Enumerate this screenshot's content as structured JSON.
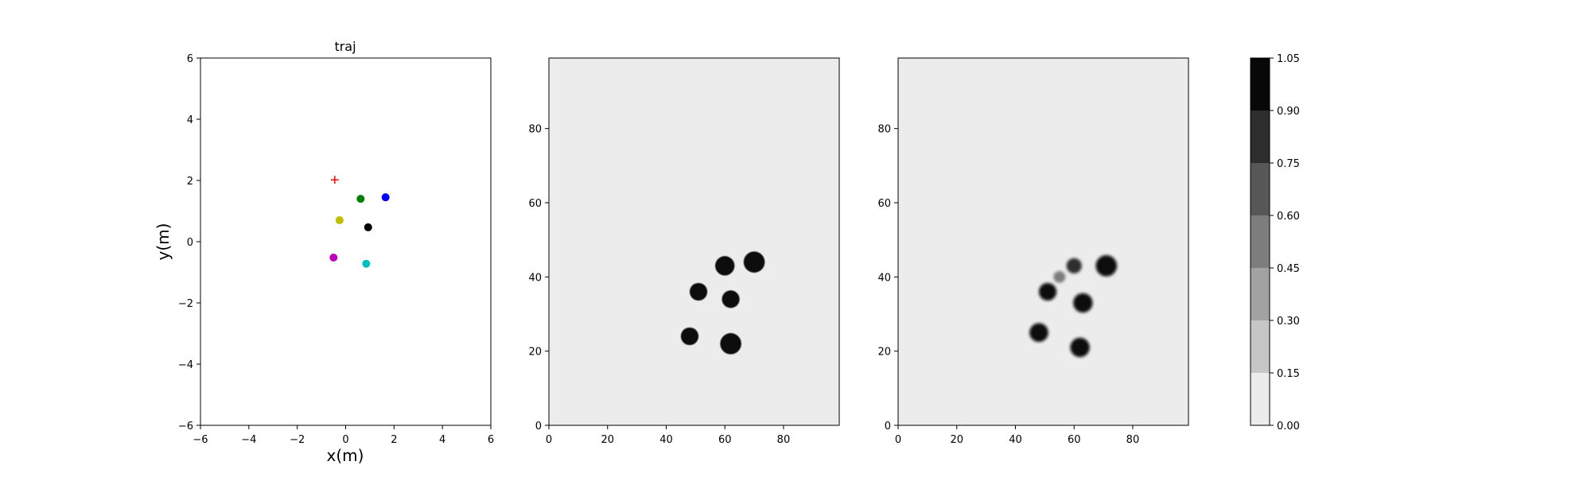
{
  "chart_data": [
    {
      "type": "scatter",
      "title": "traj",
      "xlabel": "x(m)",
      "ylabel": "y(m)",
      "xlim": [
        -6,
        6
      ],
      "ylim": [
        -6,
        6
      ],
      "xticks": [
        -6,
        -4,
        -2,
        0,
        2,
        4,
        6
      ],
      "yticks": [
        -6,
        -4,
        -2,
        0,
        2,
        4,
        6
      ],
      "xtick_labels": [
        "−6",
        "−4",
        "−2",
        "0",
        "2",
        "4",
        "6"
      ],
      "ytick_labels": [
        "−6",
        "−4",
        "−2",
        "0",
        "2",
        "4",
        "6"
      ],
      "grid": false,
      "points": [
        {
          "x": -0.45,
          "y": 2.02,
          "color": "#ff0000",
          "marker": "plus"
        },
        {
          "x": 0.62,
          "y": 1.4,
          "color": "#008000",
          "marker": "circle"
        },
        {
          "x": 1.65,
          "y": 1.45,
          "color": "#0000ff",
          "marker": "circle"
        },
        {
          "x": -0.25,
          "y": 0.7,
          "color": "#bfbf00",
          "marker": "circle"
        },
        {
          "x": 0.93,
          "y": 0.47,
          "color": "#000000",
          "marker": "circle"
        },
        {
          "x": -0.5,
          "y": -0.52,
          "color": "#bf00bf",
          "marker": "circle"
        },
        {
          "x": 0.85,
          "y": -0.72,
          "color": "#00bfbf",
          "marker": "circle"
        }
      ]
    },
    {
      "type": "heatmap",
      "xlim": [
        0,
        99
      ],
      "ylim": [
        0,
        99
      ],
      "xticks": [
        0,
        20,
        40,
        60,
        80
      ],
      "yticks": [
        0,
        20,
        40,
        60,
        80
      ],
      "background_value": 0.0,
      "blobs": [
        {
          "x": 70,
          "y": 44,
          "radius": 3.6,
          "value": 1.0
        },
        {
          "x": 60,
          "y": 43,
          "radius": 3.3,
          "value": 1.0
        },
        {
          "x": 51,
          "y": 36,
          "radius": 3.0,
          "value": 1.0
        },
        {
          "x": 62,
          "y": 34,
          "radius": 3.0,
          "value": 1.0
        },
        {
          "x": 48,
          "y": 24,
          "radius": 3.0,
          "value": 1.0
        },
        {
          "x": 62,
          "y": 22,
          "radius": 3.6,
          "value": 1.0
        }
      ]
    },
    {
      "type": "heatmap",
      "xlim": [
        0,
        99
      ],
      "ylim": [
        0,
        99
      ],
      "xticks": [
        0,
        20,
        40,
        60,
        80
      ],
      "yticks": [
        0,
        20,
        40,
        60,
        80
      ],
      "background_value": 0.0,
      "blobs": [
        {
          "x": 71,
          "y": 43,
          "radius": 3.6,
          "value": 1.0
        },
        {
          "x": 60,
          "y": 43,
          "radius": 2.6,
          "value": 0.85
        },
        {
          "x": 55,
          "y": 40,
          "radius": 2.0,
          "value": 0.5
        },
        {
          "x": 51,
          "y": 36,
          "radius": 3.0,
          "value": 1.0
        },
        {
          "x": 63,
          "y": 33,
          "radius": 3.3,
          "value": 1.0
        },
        {
          "x": 48,
          "y": 25,
          "radius": 3.2,
          "value": 1.0
        },
        {
          "x": 62,
          "y": 21,
          "radius": 3.3,
          "value": 1.0
        }
      ]
    }
  ],
  "colorbar": {
    "levels": [
      0.0,
      0.15,
      0.3,
      0.45,
      0.6,
      0.75,
      0.9,
      1.05
    ],
    "tick_labels": [
      "0.00",
      "0.15",
      "0.30",
      "0.45",
      "0.60",
      "0.75",
      "0.90",
      "1.05"
    ],
    "colors": [
      "#ececec",
      "#c6c6c6",
      "#a2a2a2",
      "#7d7d7d",
      "#575757",
      "#2d2d2d",
      "#080808"
    ]
  }
}
